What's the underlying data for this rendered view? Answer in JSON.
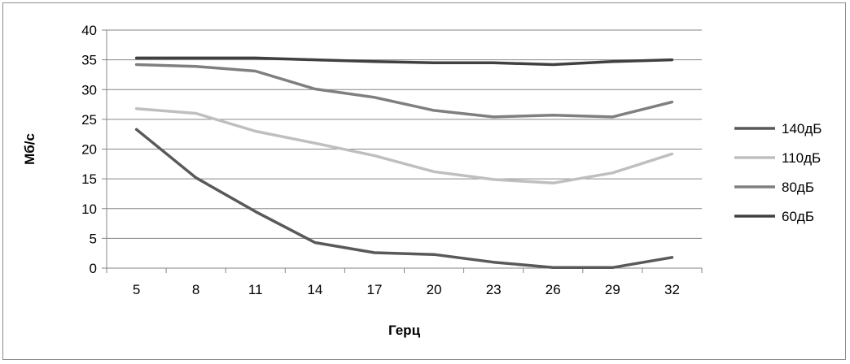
{
  "chart_data": {
    "type": "line",
    "xlabel": "Герц",
    "ylabel": "Мб/с",
    "ylim": [
      0,
      40
    ],
    "yticks": [
      0,
      5,
      10,
      15,
      20,
      25,
      30,
      35,
      40
    ],
    "categories": [
      "5",
      "8",
      "11",
      "14",
      "17",
      "20",
      "23",
      "26",
      "29",
      "32"
    ],
    "grid": true,
    "legend_position": "right",
    "series": [
      {
        "name": "140дБ",
        "color": "#595959",
        "values": [
          23.3,
          15.2,
          9.5,
          4.3,
          2.6,
          2.3,
          1.0,
          0.1,
          0.1,
          1.8
        ]
      },
      {
        "name": "110дБ",
        "color": "#bfbfbf",
        "values": [
          26.8,
          26.0,
          23.0,
          21.0,
          18.9,
          16.2,
          14.9,
          14.3,
          16.0,
          19.2
        ]
      },
      {
        "name": "80дБ",
        "color": "#7f7f7f",
        "values": [
          34.2,
          33.9,
          33.1,
          30.1,
          28.7,
          26.5,
          25.4,
          25.7,
          25.4,
          27.9
        ]
      },
      {
        "name": "60дБ",
        "color": "#404040",
        "values": [
          35.3,
          35.3,
          35.3,
          35.0,
          34.7,
          34.5,
          34.5,
          34.2,
          34.7,
          35.0
        ]
      }
    ]
  }
}
